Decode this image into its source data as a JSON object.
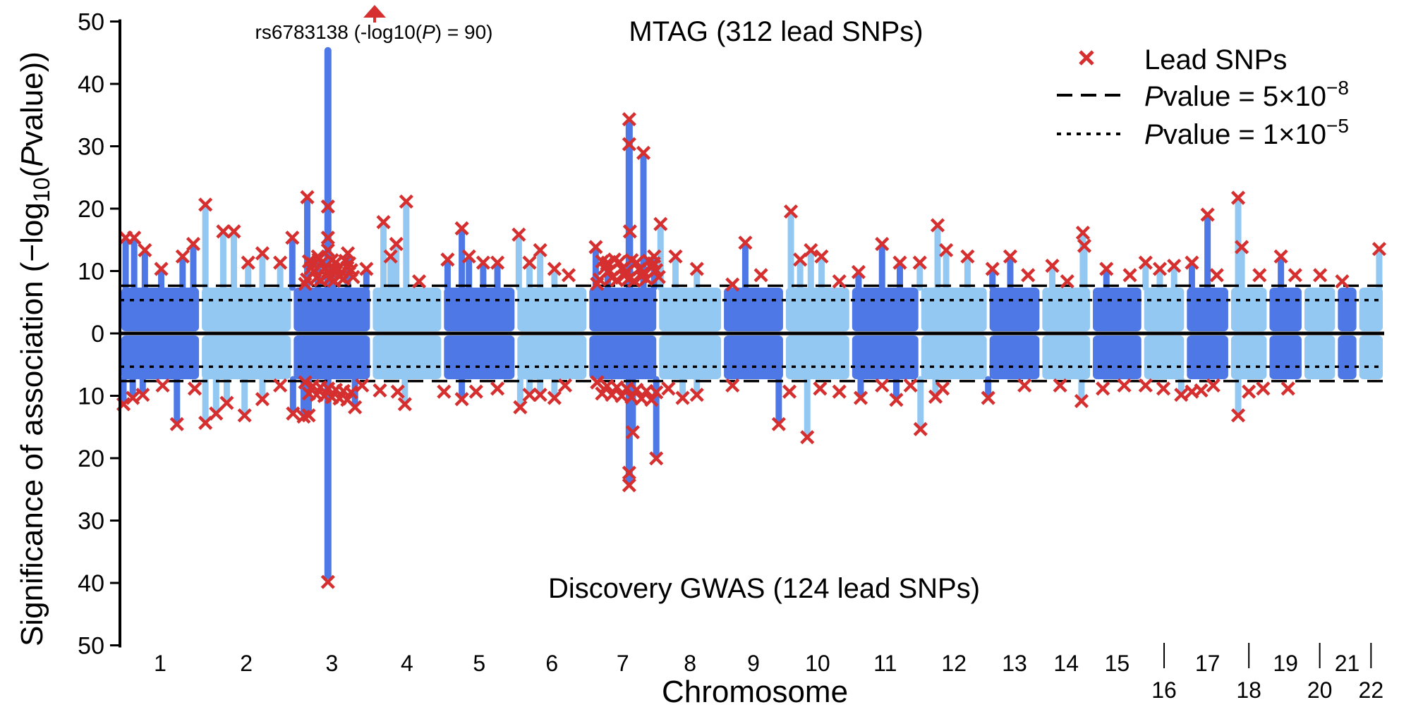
{
  "chart_data": {
    "type": "scatter",
    "subtype": "miami-plot",
    "ylabel_parts": {
      "prefix": "Significance of association (−log",
      "sub": "10",
      "mid": "(",
      "italic": "P",
      "suffix": "value))"
    },
    "xlabel": "Chromosome",
    "top_panel": {
      "title": "MTAG (312 lead SNPs)",
      "ylim": [
        0,
        50
      ]
    },
    "bottom_panel": {
      "title": "Discovery GWAS (124 lead SNPs)",
      "ylim": [
        0,
        50
      ]
    },
    "y_ticks": [
      "50",
      "40",
      "30",
      "20",
      "10",
      "0",
      "10",
      "20",
      "30",
      "40",
      "50"
    ],
    "thresholds": [
      {
        "name": "genome-wide",
        "neg_log10_p": 7.3,
        "style": "dashed"
      },
      {
        "name": "suggestive",
        "neg_log10_p": 5.0,
        "style": "dotted"
      }
    ],
    "legend": {
      "position": "top-right",
      "lead_label": "Lead SNPs",
      "dashed_label": {
        "italic": "P",
        "text": "value = 5×10",
        "exp": "−8"
      },
      "dotted_label": {
        "italic": "P",
        "text": "value = 1×10",
        "exp": "−5"
      }
    },
    "annotation": {
      "text_prefix": "rs6783138 (-log10(",
      "text_italic": "P",
      "text_suffix": ") = 90)",
      "chromosome": "3",
      "neg_log10_p": 90
    },
    "colors": {
      "dark": "#4e78e6",
      "light": "#93c8f2",
      "lead": "#d62f2f",
      "line": "#000000"
    },
    "chromosomes": [
      "1",
      "2",
      "3",
      "4",
      "5",
      "6",
      "7",
      "8",
      "9",
      "10",
      "11",
      "12",
      "13",
      "14",
      "15",
      "16",
      "17",
      "18",
      "19",
      "20",
      "21",
      "22"
    ],
    "chromosome_ranges": [
      [
        0,
        11.3
      ],
      [
        11.3,
        24.2
      ],
      [
        24.2,
        35.3
      ],
      [
        35.3,
        45.3
      ],
      [
        45.3,
        55.6
      ],
      [
        55.6,
        65.7
      ],
      [
        65.7,
        75.5
      ],
      [
        75.5,
        84.6
      ],
      [
        84.6,
        93.3
      ],
      [
        93.3,
        102.6
      ],
      [
        102.6,
        112.3
      ],
      [
        112.3,
        121.9
      ],
      [
        121.9,
        129.3
      ],
      [
        129.3,
        136.4
      ],
      [
        136.4,
        143.6
      ],
      [
        143.6,
        149.6
      ],
      [
        149.6,
        155.8
      ],
      [
        155.8,
        161.2
      ],
      [
        161.2,
        166.1
      ],
      [
        166.1,
        170.8
      ],
      [
        170.8,
        173.8
      ],
      [
        173.8,
        177.5
      ]
    ],
    "top_peaks": [
      [
        0.8,
        15
      ],
      [
        2,
        15
      ],
      [
        3.5,
        13
      ],
      [
        5.8,
        10
      ],
      [
        8.8,
        12
      ],
      [
        10.3,
        14
      ],
      [
        12,
        20.3
      ],
      [
        14.5,
        16
      ],
      [
        16,
        16
      ],
      [
        18,
        11
      ],
      [
        20,
        12.5
      ],
      [
        22.5,
        11
      ],
      [
        24.2,
        15
      ],
      [
        26.3,
        21.5
      ],
      [
        27.8,
        12
      ],
      [
        30,
        10
      ],
      [
        32,
        12.5
      ],
      [
        34.6,
        10
      ],
      [
        37,
        17.5
      ],
      [
        38,
        12
      ],
      [
        38.8,
        14
      ],
      [
        40.2,
        20.8
      ],
      [
        42,
        8
      ],
      [
        46,
        11.5
      ],
      [
        48,
        16.5
      ],
      [
        49,
        12
      ],
      [
        51,
        11
      ],
      [
        53,
        11
      ],
      [
        56,
        15.5
      ],
      [
        57.5,
        11
      ],
      [
        59,
        13
      ],
      [
        61,
        10
      ],
      [
        63,
        9
      ],
      [
        66.8,
        13.5
      ],
      [
        68.5,
        11
      ],
      [
        71.6,
        16
      ],
      [
        73.5,
        28.6
      ],
      [
        75,
        12
      ],
      [
        75.9,
        17.2
      ],
      [
        78,
        12
      ],
      [
        81,
        10
      ],
      [
        86,
        7.5
      ],
      [
        87.8,
        14.2
      ],
      [
        90,
        9
      ],
      [
        94.2,
        19.2
      ],
      [
        95.5,
        11.5
      ],
      [
        97,
        13
      ],
      [
        98.5,
        12
      ],
      [
        101,
        8
      ],
      [
        103.7,
        9.5
      ],
      [
        107,
        14
      ],
      [
        109.5,
        11
      ],
      [
        112.3,
        11
      ],
      [
        114.8,
        17
      ],
      [
        116,
        13
      ],
      [
        119,
        12
      ],
      [
        122.5,
        10
      ],
      [
        125,
        12
      ],
      [
        127.5,
        9
      ],
      [
        130.9,
        10.5
      ],
      [
        133,
        8
      ],
      [
        135.2,
        15.8
      ],
      [
        135.4,
        13.7
      ],
      [
        138.5,
        10
      ],
      [
        141.8,
        9
      ],
      [
        144,
        11
      ],
      [
        146,
        10
      ],
      [
        148,
        10.5
      ],
      [
        150.5,
        11
      ],
      [
        152.7,
        18.7
      ],
      [
        154,
        9
      ],
      [
        157,
        21.4
      ],
      [
        157.5,
        13.5
      ],
      [
        160,
        9
      ],
      [
        163,
        12
      ],
      [
        165,
        9
      ],
      [
        168.5,
        9
      ],
      [
        171.6,
        8
      ],
      [
        176.8,
        13.2
      ]
    ],
    "top_peak_chr3": {
      "x": 29.2,
      "ymax": 45,
      "ylead": [
        20,
        15,
        13
      ]
    },
    "top_peak_chr7": {
      "x": 71.5,
      "ymax": 34
    },
    "bottom_peaks": [
      [
        0.5,
        11
      ],
      [
        1.8,
        10
      ],
      [
        3.2,
        9.5
      ],
      [
        6,
        8
      ],
      [
        8,
        14.2
      ],
      [
        10.5,
        8.5
      ],
      [
        12,
        14
      ],
      [
        13.5,
        12.5
      ],
      [
        15,
        10.8
      ],
      [
        17.5,
        12.8
      ],
      [
        20,
        10.2
      ],
      [
        22.5,
        8
      ],
      [
        24.3,
        12.5
      ],
      [
        25.8,
        13
      ],
      [
        26.5,
        12.8
      ],
      [
        33,
        11.5
      ],
      [
        34,
        8
      ],
      [
        36.5,
        8.8
      ],
      [
        39,
        9
      ],
      [
        40,
        11
      ],
      [
        45.5,
        9
      ],
      [
        48,
        10.2
      ],
      [
        50,
        9
      ],
      [
        53,
        8.5
      ],
      [
        56.2,
        11.5
      ],
      [
        57.5,
        9.5
      ],
      [
        59,
        9.5
      ],
      [
        61,
        10
      ],
      [
        62.5,
        8
      ],
      [
        67,
        7.5
      ],
      [
        72,
        15.5
      ],
      [
        75.3,
        19.7
      ],
      [
        77,
        8.5
      ],
      [
        79,
        10
      ],
      [
        81,
        9.5
      ],
      [
        86,
        8
      ],
      [
        92.5,
        14.2
      ],
      [
        94,
        9
      ],
      [
        96.5,
        16.3
      ],
      [
        98.3,
        8.5
      ],
      [
        101,
        9
      ],
      [
        104,
        10
      ],
      [
        107,
        8
      ],
      [
        109,
        10.3
      ],
      [
        111,
        8
      ],
      [
        112.4,
        15
      ],
      [
        114.5,
        9.8
      ],
      [
        115.5,
        8.5
      ],
      [
        121.9,
        10
      ],
      [
        127,
        8
      ],
      [
        132,
        8
      ],
      [
        135,
        10.5
      ],
      [
        138,
        8.5
      ],
      [
        141,
        8
      ],
      [
        144,
        8
      ],
      [
        146.5,
        8.5
      ],
      [
        149,
        9.5
      ],
      [
        150.5,
        9
      ],
      [
        151.8,
        8.8
      ],
      [
        153.5,
        8
      ],
      [
        157,
        12.8
      ],
      [
        158.5,
        9
      ],
      [
        160.5,
        8.5
      ],
      [
        164,
        8.5
      ]
    ],
    "bottom_peak_chr3": {
      "x": 29.2,
      "ymax": 39.5
    },
    "bottom_peak_chr7": {
      "x": 71.5,
      "ymax": 24
    }
  }
}
